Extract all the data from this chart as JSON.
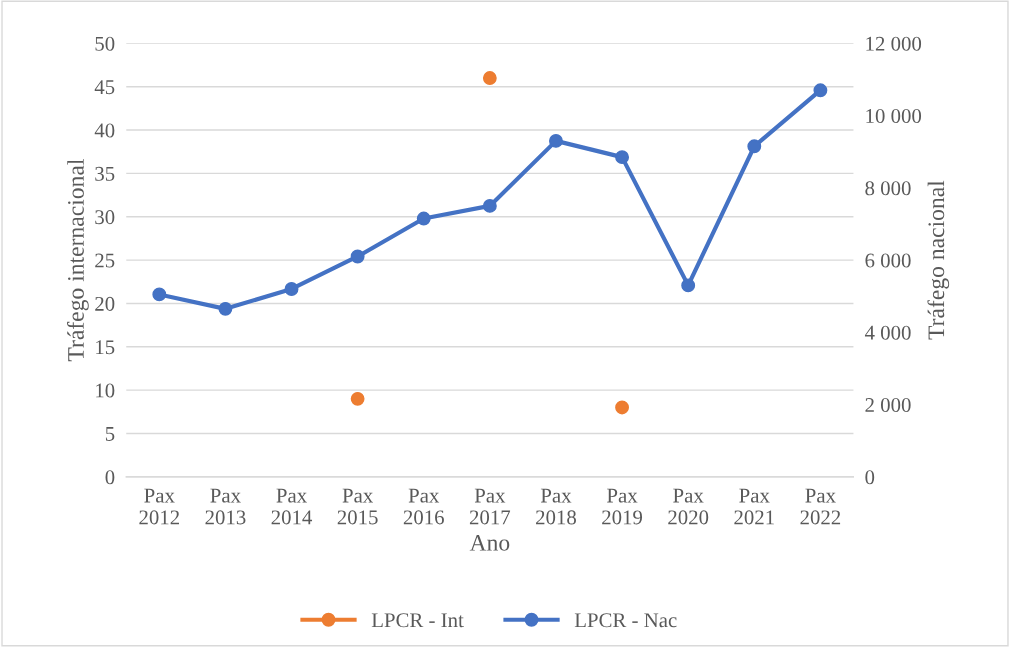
{
  "chart_data": {
    "type": "line",
    "xlabel": "Ano",
    "ylabel": "Tráfego internacional",
    "y2label": "Tráfego nacional",
    "categories": [
      "Pax\n2012",
      "Pax\n2013",
      "Pax\n2014",
      "Pax\n2015",
      "Pax\n2016",
      "Pax\n2017",
      "Pax\n2018",
      "Pax\n2019",
      "Pax\n2020",
      "Pax\n2021",
      "Pax\n2022"
    ],
    "series": [
      {
        "name": "LPCR - Int",
        "type": "scatter",
        "color": "#ed7d31",
        "values": [
          null,
          null,
          null,
          9,
          null,
          46,
          null,
          8,
          null,
          null,
          null
        ]
      },
      {
        "name": "LPCR - Nac",
        "color": "#4472c4",
        "axis": "y2",
        "values": [
          5050,
          4650,
          5200,
          6100,
          7150,
          7500,
          9300,
          8850,
          5300,
          9150,
          10700
        ]
      }
    ],
    "ylim": [
      0,
      50
    ],
    "yticks": [
      0,
      5,
      10,
      15,
      20,
      25,
      30,
      35,
      40,
      45,
      50
    ],
    "y2lim": [
      0,
      12000
    ],
    "y2ticks": [
      0,
      {
        "value": 2000,
        "label": "2 000"
      },
      {
        "value": 4000,
        "label": "4 000"
      },
      {
        "value": 6000,
        "label": "6 000"
      },
      {
        "value": 8000,
        "label": "8 000"
      },
      {
        "value": 10000,
        "label": "10 000"
      },
      {
        "value": 12000,
        "label": "12 000"
      }
    ],
    "grid": "y",
    "legend": "bottom",
    "marker": "circle",
    "line_style": "solid"
  }
}
